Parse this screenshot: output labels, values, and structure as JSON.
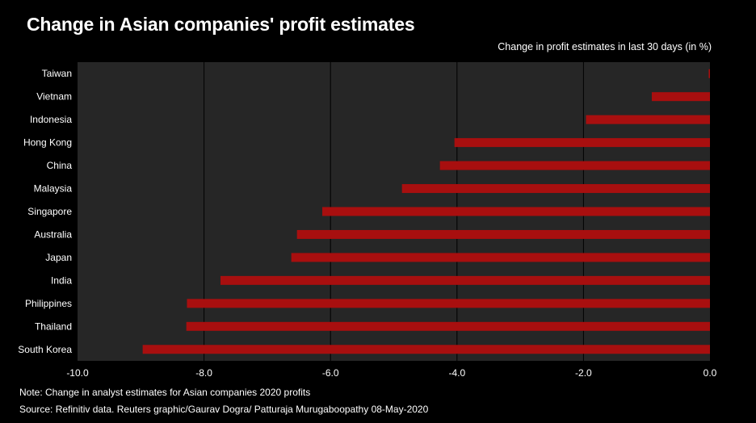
{
  "chart_data": {
    "type": "bar",
    "orientation": "horizontal",
    "title": "Change in Asian companies' profit estimates",
    "subtitle": "Change in profit estimates in last 30 days (in %)",
    "categories": [
      "Taiwan",
      "Vietnam",
      "Indonesia",
      "Hong Kong",
      "China",
      "Malaysia",
      "Singapore",
      "Australia",
      "Japan",
      "India",
      "Philippines",
      "Thailand",
      "South Korea"
    ],
    "values": [
      -0.02,
      -0.92,
      -1.96,
      -4.04,
      -4.27,
      -4.87,
      -6.13,
      -6.53,
      -6.62,
      -7.74,
      -8.27,
      -8.28,
      -8.97
    ],
    "xlim": [
      -10.0,
      0.0
    ],
    "xticks": [
      -10.0,
      -8.0,
      -6.0,
      -4.0,
      -2.0,
      0.0
    ],
    "xtick_labels": [
      "-10.0",
      "-8.0",
      "-6.0",
      "-4.0",
      "-2.0",
      "0.0"
    ],
    "xlabel": "",
    "ylabel": "",
    "grid": true,
    "bar_color": "#a80f0f",
    "plot_background": "#262626",
    "page_background": "#000000"
  },
  "footer": {
    "note": "Note: Change in analyst estimates for Asian companies 2020 profits",
    "source": "Source: Refinitiv data.  Reuters graphic/Gaurav Dogra/ Patturaja Murugaboopathy 08-May-2020"
  }
}
